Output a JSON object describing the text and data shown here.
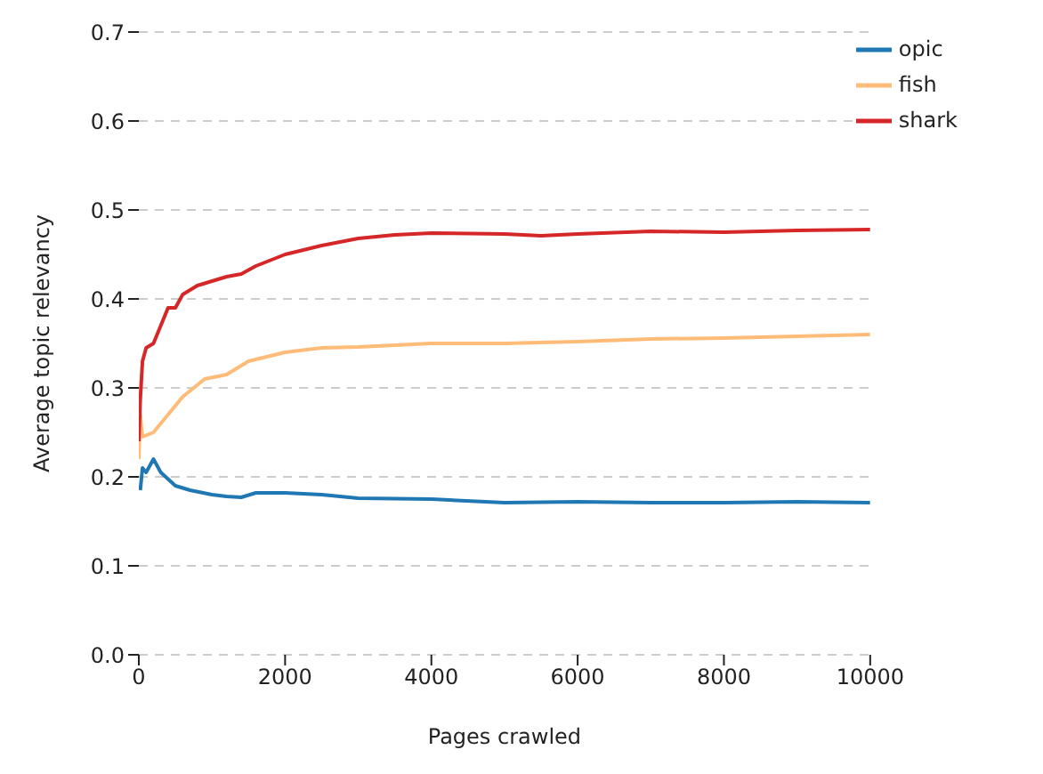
{
  "chart_data": {
    "type": "line",
    "xlabel": "Pages crawled",
    "ylabel": "Average topic relevancy",
    "xlim": [
      0,
      10000
    ],
    "xticks": [
      0,
      2000,
      4000,
      6000,
      8000,
      10000
    ],
    "ylim": [
      0,
      0.7
    ],
    "yticks": [
      {
        "value": 0,
        "label": "0.0"
      },
      0.1,
      0.2,
      0.3,
      0.4,
      0.5,
      0.6,
      0.7
    ],
    "grid": "y",
    "legend": "top right",
    "line_style": "solid",
    "marker": "none",
    "series": [
      {
        "name": "opic",
        "color": "#1f77b4",
        "x": [
          20,
          50,
          100,
          200,
          300,
          500,
          700,
          1000,
          1200,
          1400,
          1600,
          2000,
          2500,
          3000,
          4000,
          5000,
          6000,
          7000,
          8000,
          9000,
          10000
        ],
        "values": [
          0.185,
          0.21,
          0.205,
          0.22,
          0.205,
          0.19,
          0.185,
          0.18,
          0.178,
          0.177,
          0.182,
          0.182,
          0.18,
          0.176,
          0.175,
          0.171,
          0.172,
          0.171,
          0.171,
          0.172,
          0.171
        ]
      },
      {
        "name": "fish",
        "color": "#ffbb78",
        "x": [
          0,
          20,
          50,
          200,
          400,
          600,
          900,
          1200,
          1500,
          2000,
          2500,
          3000,
          3500,
          4000,
          5000,
          6000,
          7000,
          8000,
          9000,
          10000
        ],
        "values": [
          0.22,
          0.27,
          0.245,
          0.25,
          0.27,
          0.29,
          0.31,
          0.315,
          0.33,
          0.34,
          0.345,
          0.346,
          0.348,
          0.35,
          0.35,
          0.352,
          0.355,
          0.356,
          0.358,
          0.36
        ]
      },
      {
        "name": "shark",
        "color": "#d62728",
        "x": [
          0,
          20,
          50,
          100,
          200,
          300,
          400,
          500,
          600,
          800,
          1000,
          1200,
          1400,
          1600,
          2000,
          2500,
          3000,
          3500,
          4000,
          5000,
          5500,
          6000,
          7000,
          8000,
          9000,
          10000
        ],
        "values": [
          0.24,
          0.287,
          0.33,
          0.345,
          0.35,
          0.37,
          0.39,
          0.39,
          0.405,
          0.415,
          0.42,
          0.425,
          0.428,
          0.437,
          0.45,
          0.46,
          0.468,
          0.472,
          0.474,
          0.473,
          0.471,
          0.473,
          0.476,
          0.475,
          0.477,
          0.478
        ]
      }
    ]
  }
}
